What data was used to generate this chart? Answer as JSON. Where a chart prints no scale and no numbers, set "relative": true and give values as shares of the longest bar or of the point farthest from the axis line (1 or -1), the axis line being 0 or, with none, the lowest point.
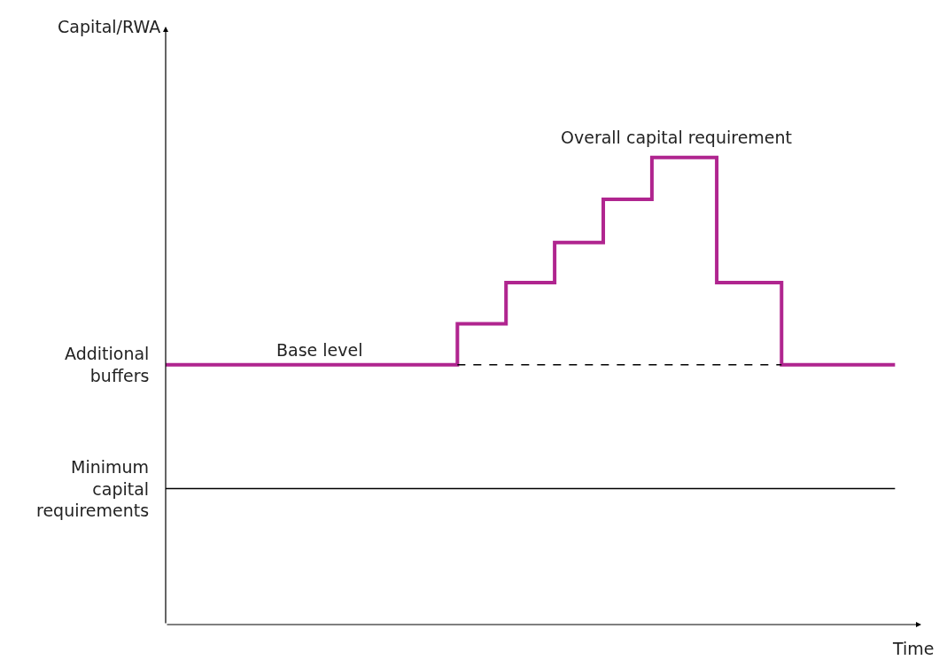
{
  "chart_data": {
    "type": "step",
    "relative": true,
    "xlabel": "Time",
    "categories": [
      null,
      null,
      null,
      null,
      null,
      null,
      null,
      null,
      null,
      null,
      null,
      null,
      null,
      null,
      null,
      null,
      null,
      null,
      null,
      null,
      null,
      null,
      null,
      null,
      null,
      null,
      null,
      null,
      null,
      null,
      null,
      null,
      null,
      null,
      null,
      null,
      null,
      null,
      null,
      null,
      null,
      null,
      null,
      null,
      null,
      null
    ],
    "series": [
      {
        "color": "#b0258f",
        "values": [
          0.556,
          0.556,
          0.556,
          0.556,
          0.556,
          0.556,
          0.556,
          0.556,
          0.556,
          0.556,
          0.556,
          0.556,
          0.556,
          0.556,
          0.556,
          0.556,
          0.556,
          0.556,
          0.644,
          0.644,
          0.644,
          0.732,
          0.732,
          0.732,
          0.818,
          0.818,
          0.818,
          0.91,
          0.91,
          0.91,
          1.0,
          1.0,
          1.0,
          1.0,
          0.732,
          0.732,
          0.732,
          0.732,
          0.556,
          0.556,
          0.556,
          0.556,
          0.556,
          0.556,
          0.556,
          0.556
        ]
      },
      {
        "type": "line",
        "line_style": "dashed",
        "color": "#000000",
        "values": [
          null,
          null,
          null,
          null,
          null,
          null,
          null,
          null,
          null,
          null,
          null,
          null,
          null,
          null,
          null,
          null,
          null,
          null,
          0.556,
          0.556,
          0.556,
          0.556,
          0.556,
          0.556,
          0.556,
          0.556,
          0.556,
          0.556,
          0.556,
          0.556,
          0.556,
          0.556,
          0.556,
          0.556,
          0.556,
          0.556,
          0.556,
          0.556,
          0.556,
          null,
          null,
          null,
          null,
          null,
          null,
          null
        ]
      }
    ],
    "ref_lines": [
      {
        "axis": "y",
        "value": 0.291,
        "label": "Minimum capital requirements",
        "color": "#000000"
      }
    ],
    "annotations": [
      {
        "text": "Base level",
        "y": 0.556
      },
      "Additional buffers",
      "Capital/RWA",
      "Overall capital requirement"
    ]
  }
}
